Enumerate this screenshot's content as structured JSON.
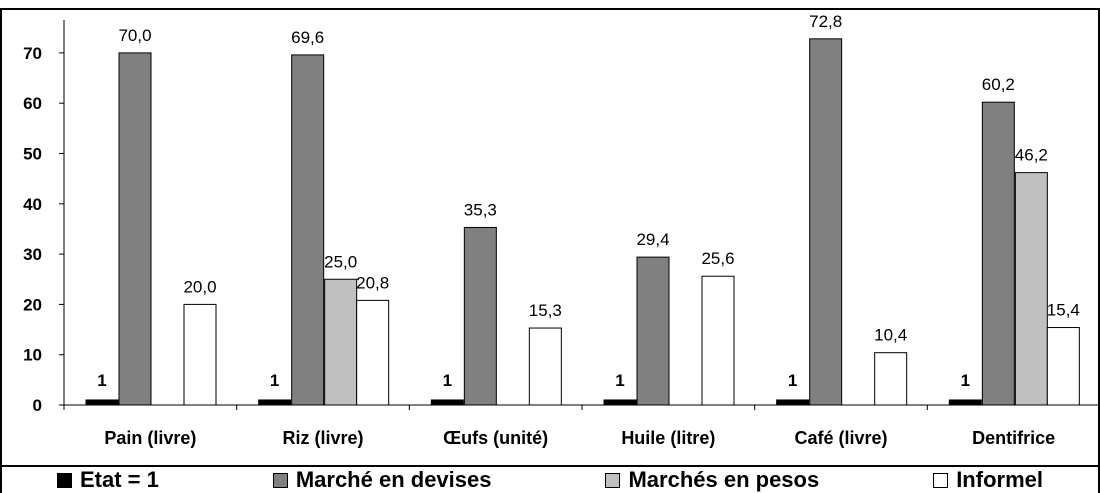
{
  "chart_data": {
    "type": "bar",
    "title": "",
    "xlabel": "",
    "ylabel": "",
    "ylim": [
      0,
      75
    ],
    "yticks": [
      0,
      10,
      20,
      30,
      40,
      50,
      60,
      70
    ],
    "grid": false,
    "legend_position": "bottom",
    "categories": [
      "Pain (livre)",
      "Riz (livre)",
      "Œufs (unité)",
      "Huile (litre)",
      "Café (livre)",
      "Dentifrice"
    ],
    "series": [
      {
        "name": "Etat = 1",
        "color": "#000000",
        "values": [
          1,
          1,
          1,
          1,
          1,
          1
        ],
        "labels": [
          "1",
          "1",
          "1",
          "1",
          "1",
          "1"
        ]
      },
      {
        "name": "Marché en devises",
        "color": "#808080",
        "values": [
          70.0,
          69.6,
          35.3,
          29.4,
          72.8,
          60.2
        ],
        "labels": [
          "70,0",
          "69,6",
          "35,3",
          "29,4",
          "72,8",
          "60,2"
        ]
      },
      {
        "name": "Marchés en pesos",
        "color": "#c0c0c0",
        "values": [
          null,
          25.0,
          null,
          null,
          null,
          46.2
        ],
        "labels": [
          null,
          "25,0",
          null,
          null,
          null,
          "46,2"
        ]
      },
      {
        "name": "Informel",
        "color": "#ffffff",
        "values": [
          20.0,
          20.8,
          15.3,
          25.6,
          10.4,
          15.4
        ],
        "labels": [
          "20,0",
          "20,8",
          "15,3",
          "25,6",
          "10,4",
          "15,4"
        ]
      }
    ]
  }
}
